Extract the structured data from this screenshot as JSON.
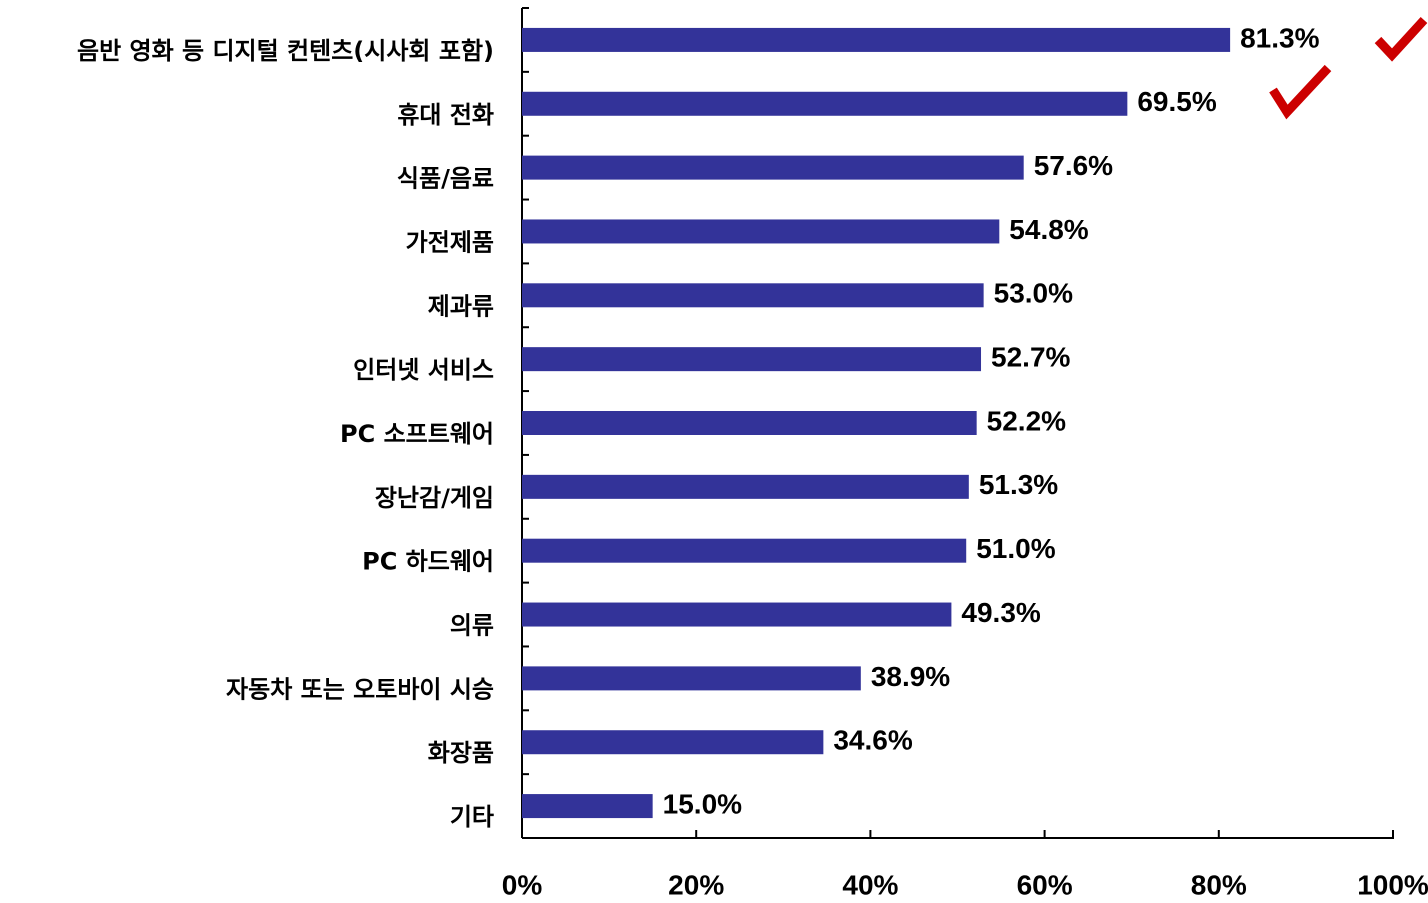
{
  "chart_data": {
    "type": "bar",
    "orientation": "horizontal",
    "categories": [
      "음반 영화 등 디지털 컨텐츠(시사회 포함)",
      "휴대 전화",
      "식품/음료",
      "가전제품",
      "제과류",
      "인터넷 서비스",
      "PC 소프트웨어",
      "장난감/게임",
      "PC 하드웨어",
      "의류",
      "자동차 또는 오토바이 시승",
      "화장품",
      "기타"
    ],
    "values": [
      81.3,
      69.5,
      57.6,
      54.8,
      53.0,
      52.7,
      52.2,
      51.3,
      51.0,
      49.3,
      38.9,
      34.6,
      15.0
    ],
    "value_labels": [
      "81.3%",
      "69.5%",
      "57.6%",
      "54.8%",
      "53.0%",
      "52.7%",
      "52.2%",
      "51.3%",
      "51.0%",
      "49.3%",
      "38.9%",
      "34.6%",
      "15.0%"
    ],
    "color": "#333399",
    "xlim": [
      0,
      100
    ],
    "xticks": [
      {
        "value": 0,
        "label": "0%"
      },
      {
        "value": 20,
        "label": "20%"
      },
      {
        "value": 40,
        "label": "40%"
      },
      {
        "value": 60,
        "label": "60%"
      },
      {
        "value": 80,
        "label": "80%"
      },
      {
        "value": 100,
        "label": "100%"
      }
    ]
  }
}
